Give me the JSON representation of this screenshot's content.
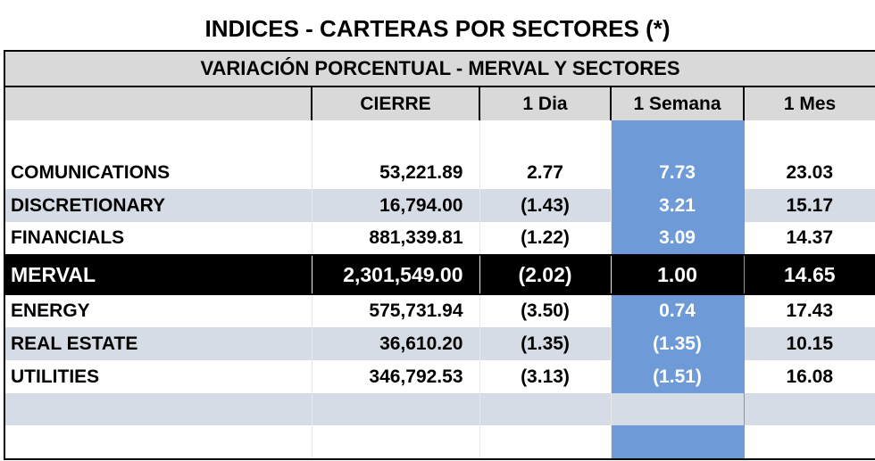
{
  "title": "INDICES - CARTERAS POR SECTORES (*)",
  "table": {
    "subtitle": "VARIACIÓN PORCENTUAL - MERVAL Y SECTORES",
    "columns": [
      "",
      "CIERRE",
      "1 Dia",
      "1 Semana",
      "1 Mes"
    ],
    "rows": [
      {
        "name": "COMUNICATIONS",
        "cierre": "53,221.89",
        "dia": "2.77",
        "semana": "7.73",
        "mes": "23.03"
      },
      {
        "name": "DISCRETIONARY",
        "cierre": "16,794.00",
        "dia": "(1.43)",
        "semana": "3.21",
        "mes": "15.17"
      },
      {
        "name": "FINANCIALS",
        "cierre": "881,339.81",
        "dia": "(1.22)",
        "semana": "3.09",
        "mes": "14.37"
      },
      {
        "name": "MERVAL",
        "cierre": "2,301,549.00",
        "dia": "(2.02)",
        "semana": "1.00",
        "mes": "14.65"
      },
      {
        "name": "ENERGY",
        "cierre": "575,731.94",
        "dia": "(3.50)",
        "semana": "0.74",
        "mes": "17.43"
      },
      {
        "name": "REAL ESTATE",
        "cierre": "36,610.20",
        "dia": "(1.35)",
        "semana": "(1.35)",
        "mes": "10.15"
      },
      {
        "name": "UTILITIES",
        "cierre": "346,792.53",
        "dia": "(3.13)",
        "semana": "(1.51)",
        "mes": "16.08"
      }
    ]
  },
  "colors": {
    "header_gray": "#d9d9d9",
    "row_shade": "#d6dce5",
    "week_highlight": "#6e9bd8",
    "merval_row": "#000000"
  }
}
